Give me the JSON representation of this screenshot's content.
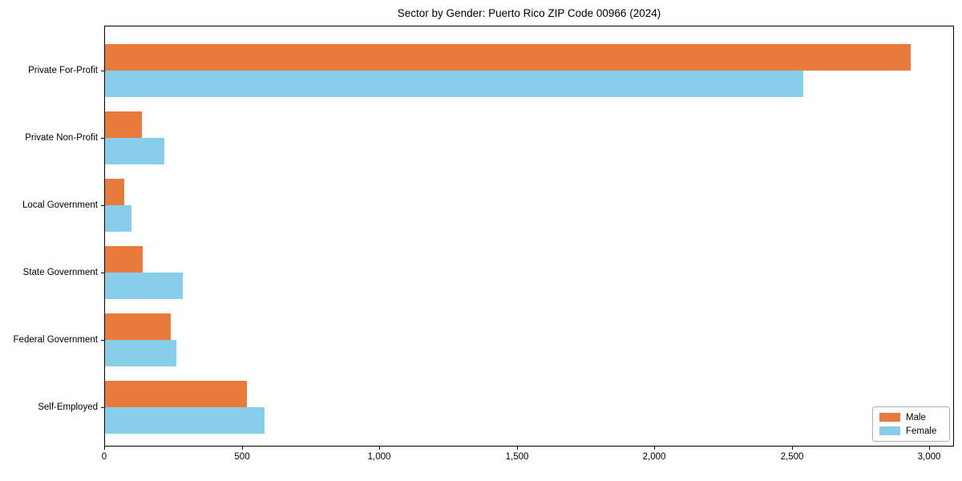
{
  "chart_data": {
    "type": "bar",
    "orientation": "horizontal",
    "title": "Sector by Gender: Puerto Rico ZIP Code 00966 (2024)",
    "categories": [
      "Private For-Profit",
      "Private Non-Profit",
      "Local Government",
      "State Government",
      "Federal Government",
      "Self-Employed"
    ],
    "series": [
      {
        "name": "Male",
        "color": "#E87A3C",
        "values": [
          2930,
          135,
          70,
          138,
          240,
          515
        ]
      },
      {
        "name": "Female",
        "color": "#87CEEB",
        "values": [
          2540,
          215,
          95,
          283,
          260,
          580
        ]
      }
    ],
    "xlabel": "",
    "ylabel": "",
    "xlim": [
      0,
      3090
    ],
    "xticks": [
      0,
      500,
      1000,
      1500,
      2000,
      2500,
      3000
    ],
    "xtick_labels": [
      "0",
      "500",
      "1,000",
      "1,500",
      "2,000",
      "2,500",
      "3,000"
    ],
    "grid": false,
    "legend_position": "lower right",
    "background_color": "#ffffff",
    "axis_color": "#000000"
  }
}
